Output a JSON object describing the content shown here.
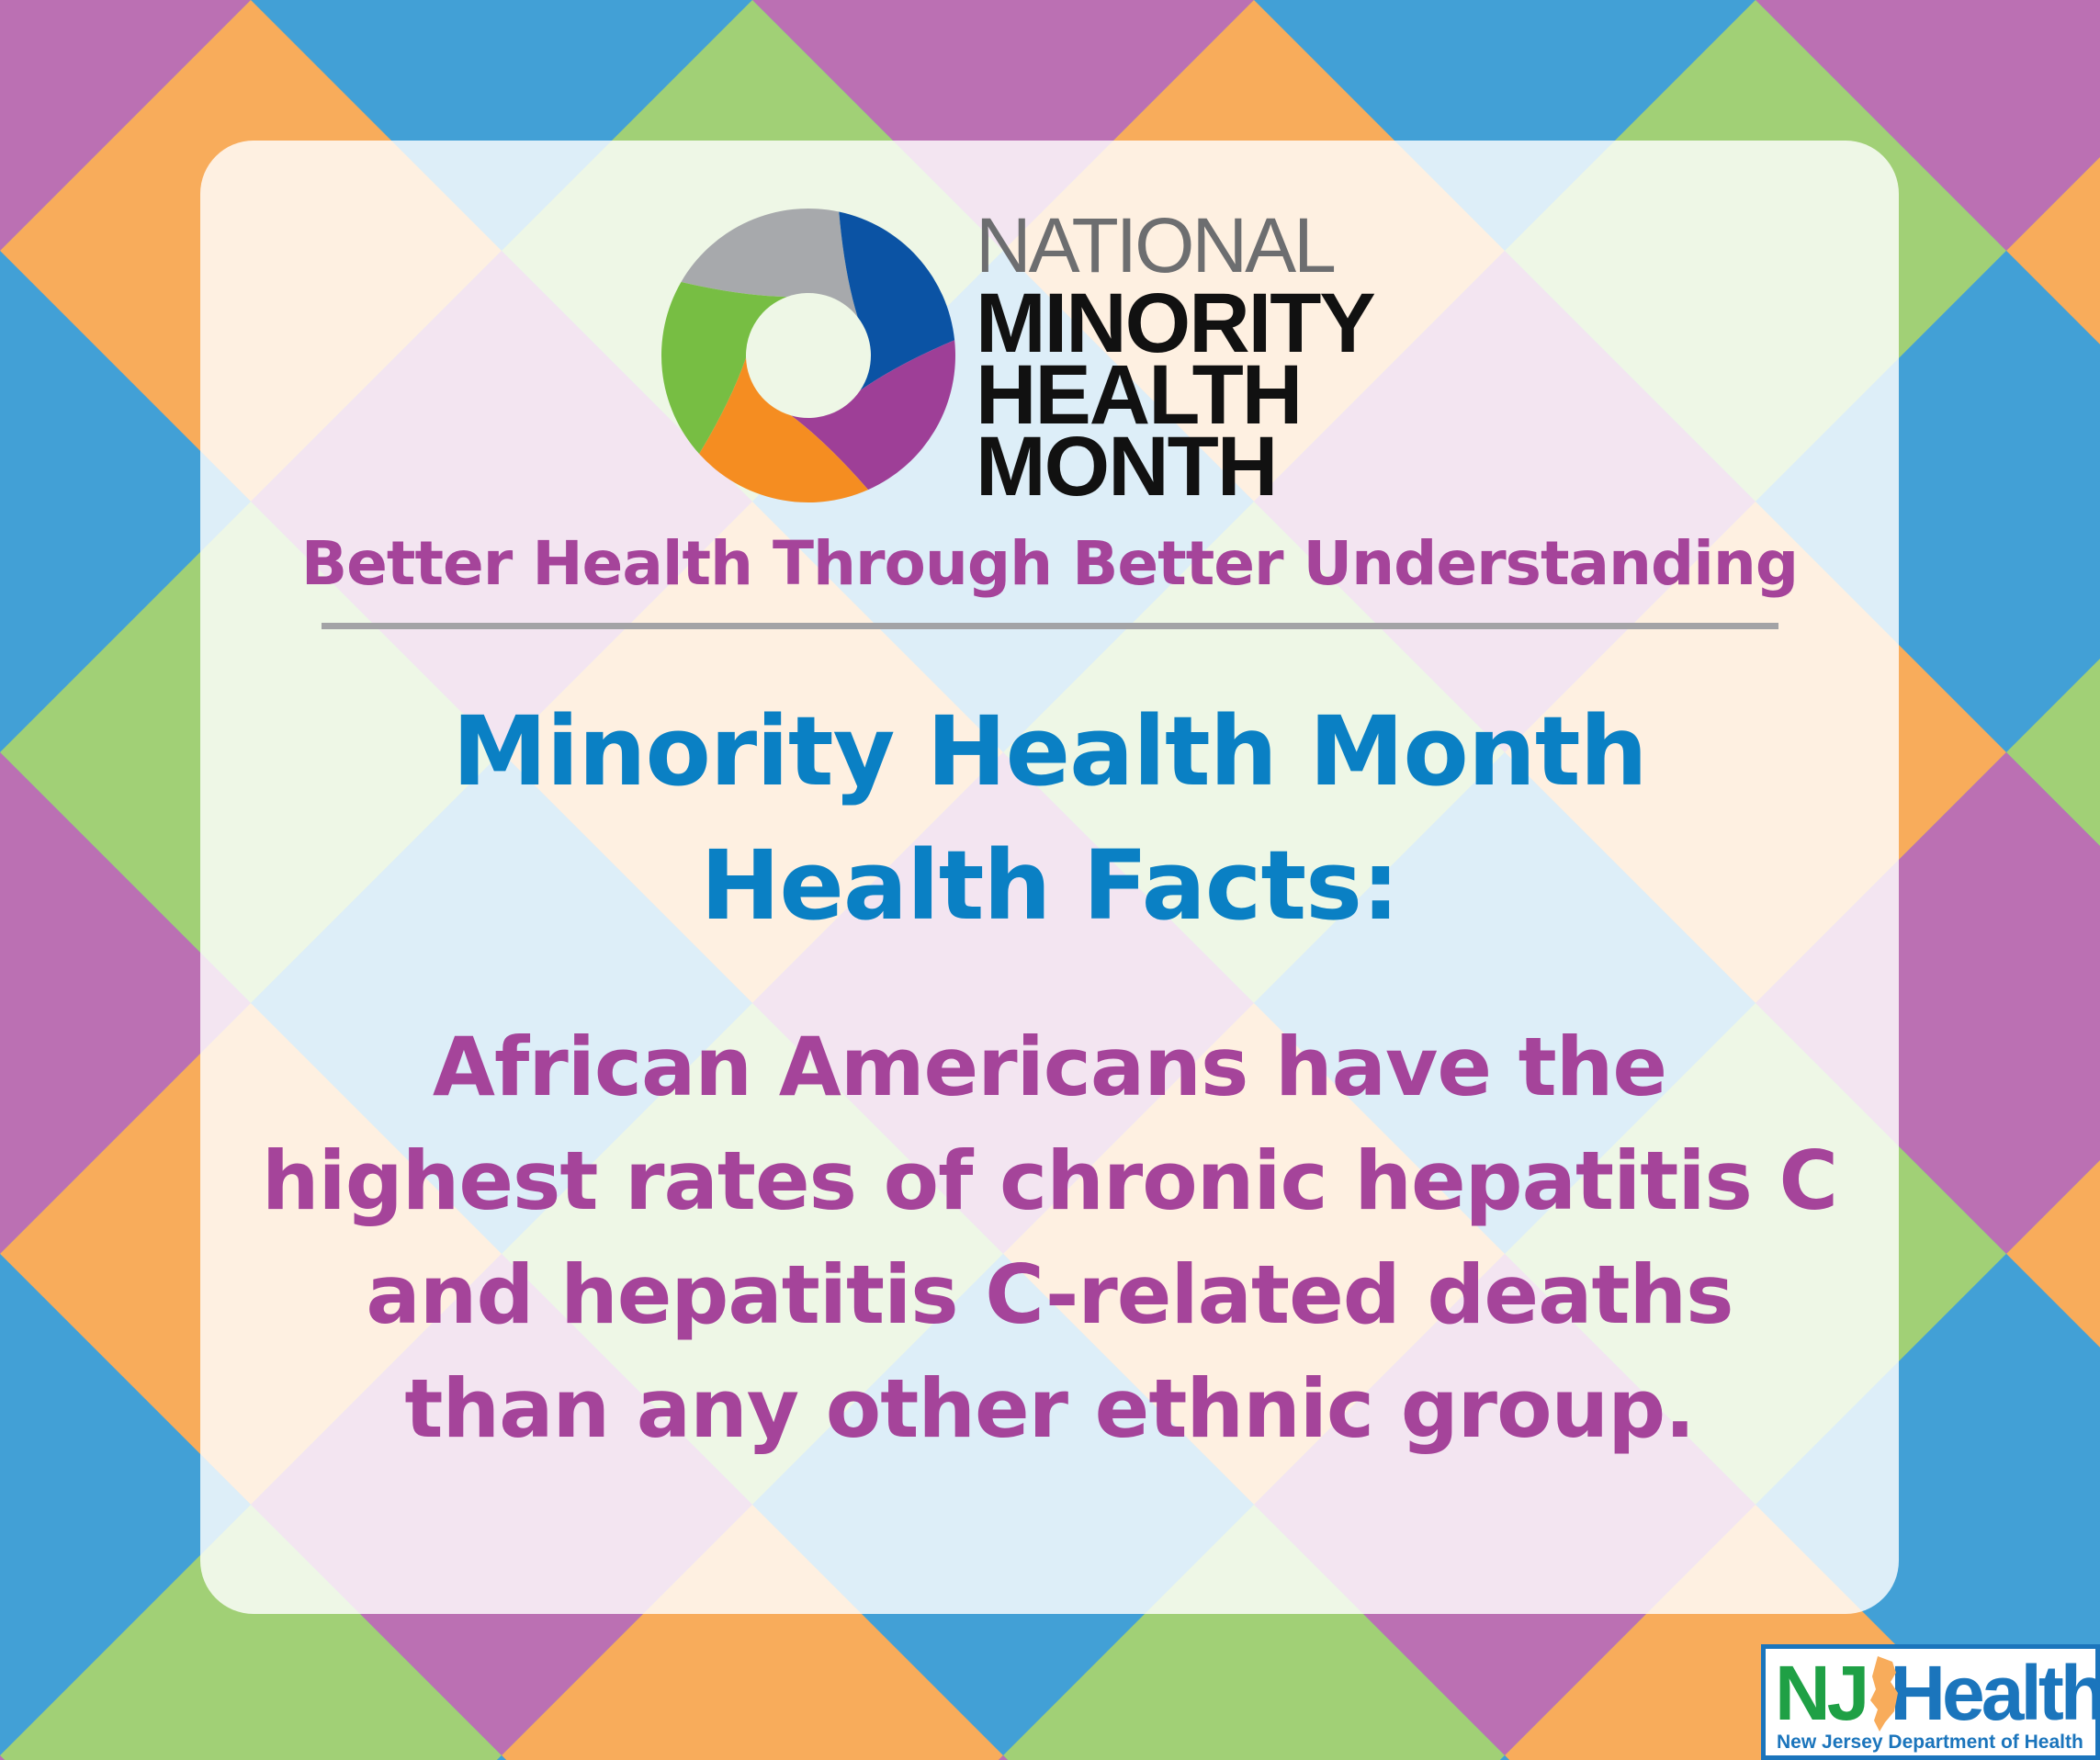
{
  "logo": {
    "line1": "NATIONAL",
    "line2": "MINORITY",
    "line3": "HEALTH",
    "line4": "MONTH",
    "ring_colors": [
      "#a7a9ac",
      "#0b53a4",
      "#9e3f97",
      "#f58d21",
      "#77be43"
    ]
  },
  "tagline": "Better Health Through Better Understanding",
  "title": {
    "line1": "Minority Health Month",
    "line2": "Health Facts:"
  },
  "fact": {
    "line1": "African Americans have the",
    "line2": "highest rates of chronic hepatitis C",
    "line3": "and hepatitis C-related deaths",
    "line4": "than any other ethnic group."
  },
  "nj_logo": {
    "nj": "NJ",
    "health": "Health",
    "subtitle": "New Jersey Department of Health"
  },
  "colors": {
    "purple": "#bb70b3",
    "green": "#a1d076",
    "blue": "#42a0d6",
    "orange": "#f8ac5b",
    "title_blue": "#0a80c4",
    "text_purple": "#a5449a"
  }
}
